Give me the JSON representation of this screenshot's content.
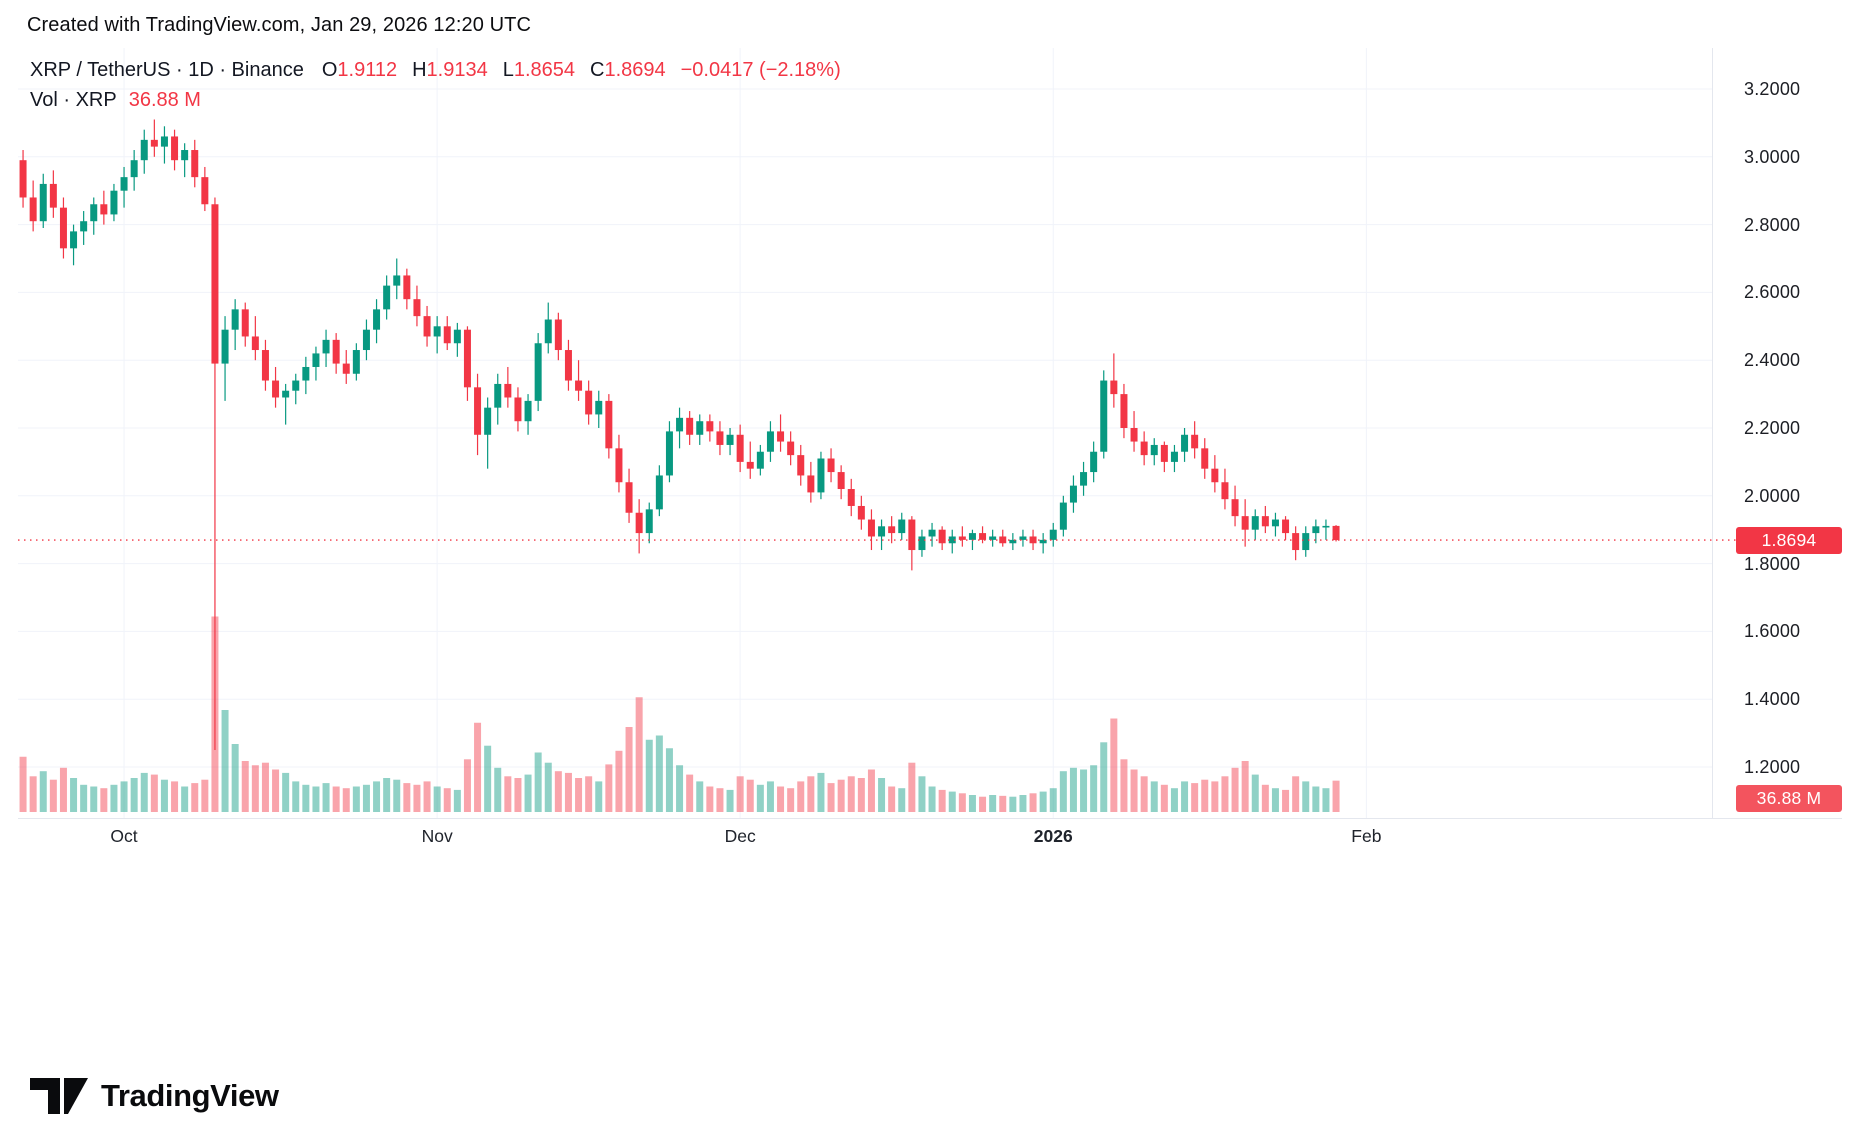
{
  "attribution": "Created with TradingView.com, Jan 29, 2026 12:20 UTC",
  "header": {
    "symbol_line": "XRP / TetherUS · 1D · Binance",
    "o_label": "O",
    "o_value": "1.9112",
    "h_label": "H",
    "h_value": "1.9134",
    "l_label": "L",
    "l_value": "1.8654",
    "c_label": "C",
    "c_value": "1.8694",
    "change_value": "−0.0417 (−2.18%)",
    "vol_label": "Vol · XRP",
    "vol_value": "36.88 M"
  },
  "price_scale": {
    "badge_price": "1.8694",
    "badge_volume": "36.88 M"
  },
  "logo_text": "TradingView",
  "colors": {
    "up": "#089981",
    "down": "#f23645",
    "vol_up": "rgba(8,153,129,0.45)",
    "vol_down": "rgba(242,54,69,0.45)",
    "grid": "#f0f3fa",
    "axis_border": "#e4e7ee",
    "last_price_line": "#f23645",
    "badge_price_bg": "#f23645",
    "badge_volume_bg": "#f3545e"
  },
  "chart_data": {
    "type": "candlestick",
    "title": "XRP / TetherUS · 1D · Binance",
    "symbol": "XRP / TetherUS",
    "interval": "1D",
    "exchange": "Binance",
    "grid": true,
    "last_close": 1.8694,
    "volume_unit": "M",
    "price_axis": {
      "ticks": [
        3.2,
        3.0,
        2.8,
        2.6,
        2.4,
        2.2,
        2.0,
        1.8,
        1.6,
        1.4,
        1.2
      ],
      "visible_range": [
        1.05,
        3.32
      ],
      "format_decimals": 4
    },
    "time_axis": {
      "ticks": [
        {
          "label": "Oct",
          "index": 10
        },
        {
          "label": "Nov",
          "index": 41
        },
        {
          "label": "Dec",
          "index": 71
        },
        {
          "label": "2026",
          "index": 102,
          "bold": true
        },
        {
          "label": "Feb",
          "index": 133
        }
      ]
    },
    "candles": [
      [
        2.99,
        3.02,
        2.85,
        2.88,
        65
      ],
      [
        2.88,
        2.93,
        2.78,
        2.81,
        42
      ],
      [
        2.81,
        2.95,
        2.79,
        2.92,
        48
      ],
      [
        2.92,
        2.96,
        2.82,
        2.85,
        38
      ],
      [
        2.85,
        2.88,
        2.7,
        2.73,
        52
      ],
      [
        2.73,
        2.8,
        2.68,
        2.78,
        40
      ],
      [
        2.78,
        2.84,
        2.74,
        2.81,
        32
      ],
      [
        2.81,
        2.88,
        2.77,
        2.86,
        30
      ],
      [
        2.86,
        2.9,
        2.8,
        2.83,
        28
      ],
      [
        2.83,
        2.92,
        2.81,
        2.9,
        32
      ],
      [
        2.9,
        2.97,
        2.85,
        2.94,
        36
      ],
      [
        2.94,
        3.02,
        2.9,
        2.99,
        40
      ],
      [
        2.99,
        3.08,
        2.95,
        3.05,
        46
      ],
      [
        3.05,
        3.11,
        3.0,
        3.03,
        44
      ],
      [
        3.03,
        3.09,
        2.98,
        3.06,
        38
      ],
      [
        3.06,
        3.08,
        2.96,
        2.99,
        36
      ],
      [
        2.99,
        3.04,
        2.94,
        3.02,
        30
      ],
      [
        3.02,
        3.05,
        2.91,
        2.94,
        34
      ],
      [
        2.94,
        2.97,
        2.84,
        2.86,
        38
      ],
      [
        2.86,
        2.88,
        1.25,
        2.39,
        230
      ],
      [
        2.39,
        2.53,
        2.28,
        2.49,
        120
      ],
      [
        2.49,
        2.58,
        2.43,
        2.55,
        80
      ],
      [
        2.55,
        2.57,
        2.44,
        2.47,
        60
      ],
      [
        2.47,
        2.53,
        2.4,
        2.43,
        55
      ],
      [
        2.43,
        2.46,
        2.31,
        2.34,
        58
      ],
      [
        2.34,
        2.38,
        2.26,
        2.29,
        50
      ],
      [
        2.29,
        2.33,
        2.21,
        2.31,
        46
      ],
      [
        2.31,
        2.36,
        2.27,
        2.34,
        36
      ],
      [
        2.34,
        2.41,
        2.3,
        2.38,
        32
      ],
      [
        2.38,
        2.44,
        2.34,
        2.42,
        30
      ],
      [
        2.42,
        2.49,
        2.38,
        2.46,
        34
      ],
      [
        2.46,
        2.48,
        2.36,
        2.39,
        30
      ],
      [
        2.39,
        2.43,
        2.33,
        2.36,
        28
      ],
      [
        2.36,
        2.45,
        2.34,
        2.43,
        30
      ],
      [
        2.43,
        2.52,
        2.4,
        2.49,
        32
      ],
      [
        2.49,
        2.58,
        2.45,
        2.55,
        36
      ],
      [
        2.55,
        2.65,
        2.52,
        2.62,
        40
      ],
      [
        2.62,
        2.7,
        2.58,
        2.65,
        38
      ],
      [
        2.65,
        2.67,
        2.55,
        2.58,
        34
      ],
      [
        2.58,
        2.62,
        2.5,
        2.53,
        32
      ],
      [
        2.53,
        2.56,
        2.44,
        2.47,
        36
      ],
      [
        2.47,
        2.53,
        2.42,
        2.5,
        30
      ],
      [
        2.5,
        2.53,
        2.43,
        2.45,
        28
      ],
      [
        2.45,
        2.51,
        2.41,
        2.49,
        26
      ],
      [
        2.49,
        2.5,
        2.28,
        2.32,
        62
      ],
      [
        2.32,
        2.36,
        2.12,
        2.18,
        105
      ],
      [
        2.18,
        2.29,
        2.08,
        2.26,
        78
      ],
      [
        2.26,
        2.36,
        2.21,
        2.33,
        52
      ],
      [
        2.33,
        2.38,
        2.26,
        2.29,
        42
      ],
      [
        2.29,
        2.32,
        2.19,
        2.22,
        40
      ],
      [
        2.22,
        2.3,
        2.18,
        2.28,
        44
      ],
      [
        2.28,
        2.48,
        2.25,
        2.45,
        70
      ],
      [
        2.45,
        2.57,
        2.42,
        2.52,
        58
      ],
      [
        2.52,
        2.54,
        2.4,
        2.43,
        48
      ],
      [
        2.43,
        2.46,
        2.31,
        2.34,
        46
      ],
      [
        2.34,
        2.4,
        2.28,
        2.31,
        40
      ],
      [
        2.31,
        2.34,
        2.21,
        2.24,
        42
      ],
      [
        2.24,
        2.31,
        2.2,
        2.28,
        36
      ],
      [
        2.28,
        2.3,
        2.11,
        2.14,
        56
      ],
      [
        2.14,
        2.18,
        2.01,
        2.04,
        72
      ],
      [
        2.04,
        2.08,
        1.92,
        1.95,
        100
      ],
      [
        1.95,
        1.99,
        1.83,
        1.89,
        135
      ],
      [
        1.89,
        1.98,
        1.86,
        1.96,
        85
      ],
      [
        1.96,
        2.09,
        1.94,
        2.06,
        90
      ],
      [
        2.06,
        2.22,
        2.04,
        2.19,
        75
      ],
      [
        2.19,
        2.26,
        2.14,
        2.23,
        55
      ],
      [
        2.23,
        2.25,
        2.15,
        2.18,
        44
      ],
      [
        2.18,
        2.24,
        2.15,
        2.22,
        36
      ],
      [
        2.22,
        2.24,
        2.16,
        2.19,
        30
      ],
      [
        2.19,
        2.22,
        2.12,
        2.15,
        28
      ],
      [
        2.15,
        2.2,
        2.12,
        2.18,
        26
      ],
      [
        2.18,
        2.21,
        2.07,
        2.1,
        42
      ],
      [
        2.1,
        2.16,
        2.05,
        2.08,
        38
      ],
      [
        2.08,
        2.15,
        2.06,
        2.13,
        32
      ],
      [
        2.13,
        2.22,
        2.1,
        2.19,
        36
      ],
      [
        2.19,
        2.24,
        2.13,
        2.16,
        30
      ],
      [
        2.16,
        2.19,
        2.09,
        2.12,
        28
      ],
      [
        2.12,
        2.15,
        2.03,
        2.06,
        36
      ],
      [
        2.06,
        2.1,
        1.98,
        2.01,
        42
      ],
      [
        2.01,
        2.13,
        1.99,
        2.11,
        46
      ],
      [
        2.11,
        2.14,
        2.04,
        2.07,
        34
      ],
      [
        2.07,
        2.09,
        1.99,
        2.02,
        38
      ],
      [
        2.02,
        2.05,
        1.94,
        1.97,
        42
      ],
      [
        1.97,
        2.0,
        1.9,
        1.93,
        40
      ],
      [
        1.93,
        1.96,
        1.84,
        1.88,
        50
      ],
      [
        1.88,
        1.93,
        1.84,
        1.91,
        40
      ],
      [
        1.91,
        1.94,
        1.86,
        1.89,
        30
      ],
      [
        1.89,
        1.95,
        1.87,
        1.93,
        28
      ],
      [
        1.93,
        1.94,
        1.78,
        1.84,
        58
      ],
      [
        1.84,
        1.9,
        1.82,
        1.88,
        42
      ],
      [
        1.88,
        1.92,
        1.85,
        1.9,
        30
      ],
      [
        1.9,
        1.91,
        1.84,
        1.86,
        26
      ],
      [
        1.86,
        1.9,
        1.83,
        1.88,
        24
      ],
      [
        1.88,
        1.91,
        1.85,
        1.87,
        22
      ],
      [
        1.87,
        1.9,
        1.84,
        1.89,
        20
      ],
      [
        1.89,
        1.91,
        1.86,
        1.87,
        18
      ],
      [
        1.87,
        1.9,
        1.85,
        1.88,
        20
      ],
      [
        1.88,
        1.9,
        1.85,
        1.86,
        19
      ],
      [
        1.86,
        1.89,
        1.84,
        1.87,
        18
      ],
      [
        1.87,
        1.9,
        1.85,
        1.88,
        20
      ],
      [
        1.88,
        1.9,
        1.84,
        1.86,
        22
      ],
      [
        1.86,
        1.89,
        1.83,
        1.87,
        24
      ],
      [
        1.87,
        1.92,
        1.85,
        1.9,
        28
      ],
      [
        1.9,
        2.0,
        1.88,
        1.98,
        48
      ],
      [
        1.98,
        2.06,
        1.95,
        2.03,
        52
      ],
      [
        2.03,
        2.1,
        2.0,
        2.07,
        50
      ],
      [
        2.07,
        2.16,
        2.04,
        2.13,
        55
      ],
      [
        2.13,
        2.37,
        2.11,
        2.34,
        82
      ],
      [
        2.34,
        2.42,
        2.26,
        2.3,
        110
      ],
      [
        2.3,
        2.33,
        2.17,
        2.2,
        62
      ],
      [
        2.2,
        2.25,
        2.13,
        2.16,
        50
      ],
      [
        2.16,
        2.19,
        2.09,
        2.12,
        42
      ],
      [
        2.12,
        2.17,
        2.09,
        2.15,
        36
      ],
      [
        2.15,
        2.16,
        2.07,
        2.1,
        32
      ],
      [
        2.1,
        2.15,
        2.07,
        2.13,
        28
      ],
      [
        2.13,
        2.2,
        2.1,
        2.18,
        36
      ],
      [
        2.18,
        2.22,
        2.11,
        2.14,
        34
      ],
      [
        2.14,
        2.17,
        2.05,
        2.08,
        38
      ],
      [
        2.08,
        2.12,
        2.01,
        2.04,
        36
      ],
      [
        2.04,
        2.08,
        1.96,
        1.99,
        42
      ],
      [
        1.99,
        2.03,
        1.91,
        1.94,
        52
      ],
      [
        1.94,
        1.99,
        1.85,
        1.9,
        60
      ],
      [
        1.9,
        1.96,
        1.87,
        1.94,
        44
      ],
      [
        1.94,
        1.97,
        1.89,
        1.91,
        32
      ],
      [
        1.91,
        1.95,
        1.88,
        1.93,
        28
      ],
      [
        1.93,
        1.94,
        1.87,
        1.89,
        26
      ],
      [
        1.89,
        1.91,
        1.81,
        1.84,
        42
      ],
      [
        1.84,
        1.91,
        1.82,
        1.89,
        36
      ],
      [
        1.89,
        1.93,
        1.86,
        1.91,
        30
      ],
      [
        1.91,
        1.93,
        1.87,
        1.9112,
        28
      ],
      [
        1.9112,
        1.9134,
        1.8654,
        1.8694,
        36.88
      ]
    ]
  }
}
